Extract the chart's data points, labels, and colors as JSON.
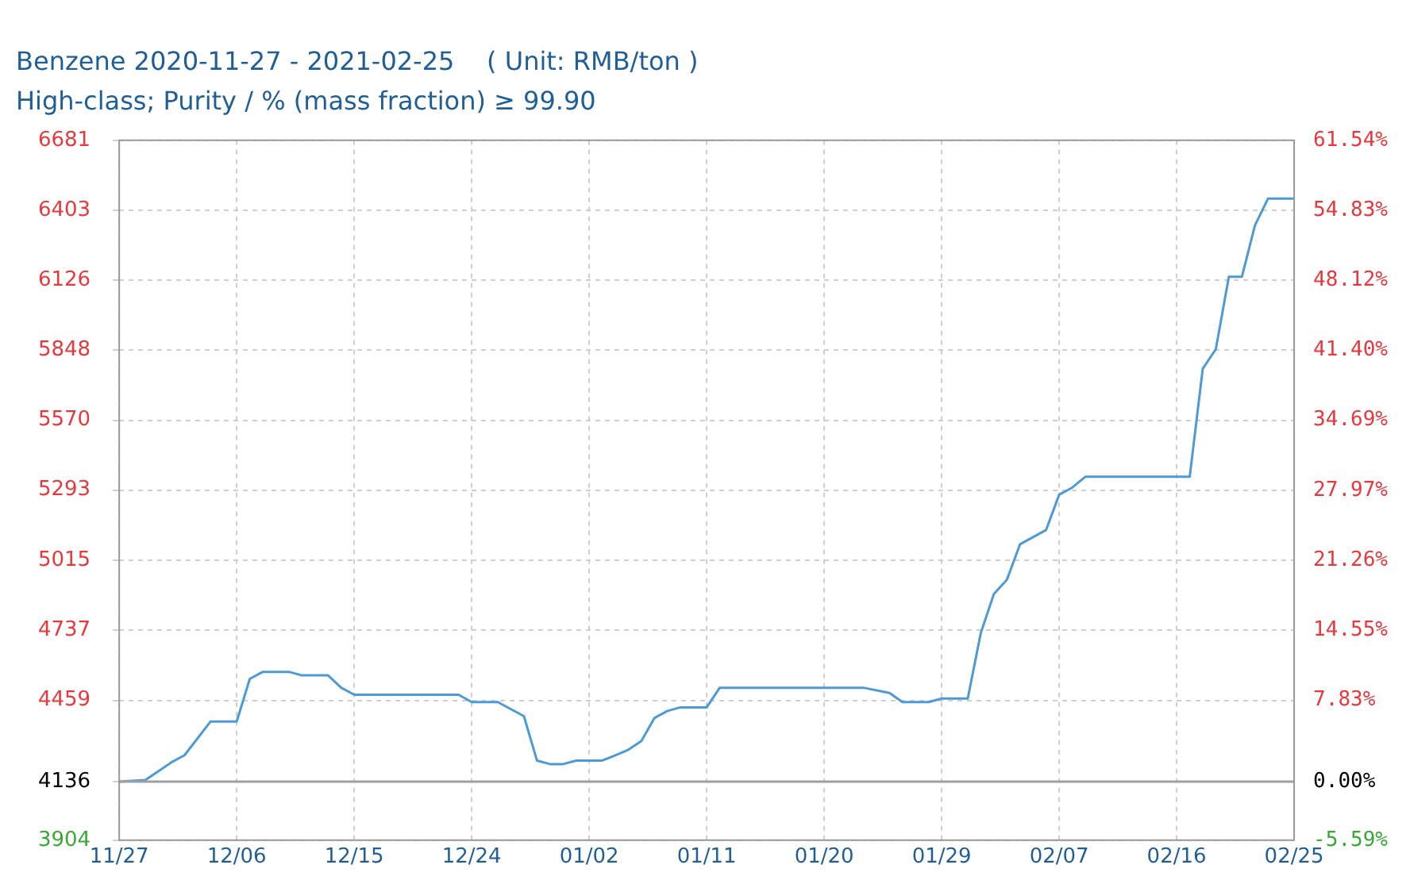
{
  "chart_data": {
    "type": "line",
    "title": "Benzene 2020-11-27 - 2021-02-25    ( Unit: RMB/ton )",
    "subtitle": "High-class; Purity / % (mass fraction) ≥ 99.90",
    "series": [
      {
        "color": "#4d9ad6",
        "x": [
          "2020-11-27",
          "2020-11-29",
          "2020-12-01",
          "2020-12-02",
          "2020-12-04",
          "2020-12-06",
          "2020-12-07",
          "2020-12-08",
          "2020-12-10",
          "2020-12-11",
          "2020-12-13",
          "2020-12-14",
          "2020-12-15",
          "2020-12-23",
          "2020-12-24",
          "2020-12-26",
          "2020-12-28",
          "2020-12-29",
          "2020-12-30",
          "2020-12-31",
          "2021-01-01",
          "2021-01-03",
          "2021-01-04",
          "2021-01-05",
          "2021-01-06",
          "2021-01-07",
          "2021-01-08",
          "2021-01-09",
          "2021-01-11",
          "2021-01-12",
          "2021-01-23",
          "2021-01-25",
          "2021-01-26",
          "2021-01-28",
          "2021-01-29",
          "2021-01-31",
          "2021-02-01",
          "2021-02-02",
          "2021-02-03",
          "2021-02-04",
          "2021-02-06",
          "2021-02-07",
          "2021-02-08",
          "2021-02-09",
          "2021-02-17",
          "2021-02-18",
          "2021-02-19",
          "2021-02-20",
          "2021-02-21",
          "2021-02-22",
          "2021-02-23",
          "2021-02-25"
        ],
        "values": [
          4136,
          4143,
          4213,
          4241,
          4375,
          4375,
          4544,
          4572,
          4572,
          4558,
          4558,
          4509,
          4481,
          4481,
          4452,
          4452,
          4396,
          4220,
          4206,
          4206,
          4220,
          4220,
          4241,
          4263,
          4298,
          4389,
          4417,
          4431,
          4431,
          4509,
          4509,
          4488,
          4452,
          4452,
          4466,
          4466,
          4727,
          4881,
          4938,
          5078,
          5135,
          5275,
          5303,
          5346,
          5346,
          5775,
          5852,
          6140,
          6140,
          6344,
          6450,
          6450
        ]
      }
    ],
    "xlim": [
      "2020-11-27",
      "2021-02-25"
    ],
    "xticks": [
      {
        "value": "2020-11-27",
        "label": "11/27"
      },
      {
        "value": "2020-12-06",
        "label": "12/06"
      },
      {
        "value": "2020-12-15",
        "label": "12/15"
      },
      {
        "value": "2020-12-24",
        "label": "12/24"
      },
      {
        "value": "2021-01-02",
        "label": "01/02"
      },
      {
        "value": "2021-01-11",
        "label": "01/11"
      },
      {
        "value": "2021-01-20",
        "label": "01/20"
      },
      {
        "value": "2021-01-29",
        "label": "01/29"
      },
      {
        "value": "2021-02-07",
        "label": "02/07"
      },
      {
        "value": "2021-02-16",
        "label": "02/16"
      },
      {
        "value": "2021-02-25",
        "label": "02/25"
      }
    ],
    "ylim": [
      3904,
      6681
    ],
    "yticks": [
      3904,
      4136,
      4459,
      4737,
      5015,
      5293,
      5570,
      5848,
      6126,
      6403,
      6681
    ],
    "y2lim": [
      -5.59,
      61.54
    ],
    "y2ticks": [
      {
        "value": -5.59,
        "label": "-5.59%"
      },
      {
        "value": 0,
        "label": "0.00%"
      },
      {
        "value": 7.83,
        "label": "7.83%"
      },
      {
        "value": 14.55,
        "label": "14.55%"
      },
      {
        "value": 21.26,
        "label": "21.26%"
      },
      {
        "value": 27.97,
        "label": "27.97%"
      },
      {
        "value": 34.69,
        "label": "34.69%"
      },
      {
        "value": 41.4,
        "label": "41.40%"
      },
      {
        "value": 48.12,
        "label": "48.12%"
      },
      {
        "value": 54.83,
        "label": "54.83%"
      },
      {
        "value": 61.54,
        "label": "61.54%"
      }
    ],
    "ref_lines": [
      {
        "axis": "y",
        "value": 4136,
        "color": "#a0a0a0"
      }
    ],
    "grid": true,
    "legend": false,
    "marker": "none",
    "line_style": "solid"
  }
}
